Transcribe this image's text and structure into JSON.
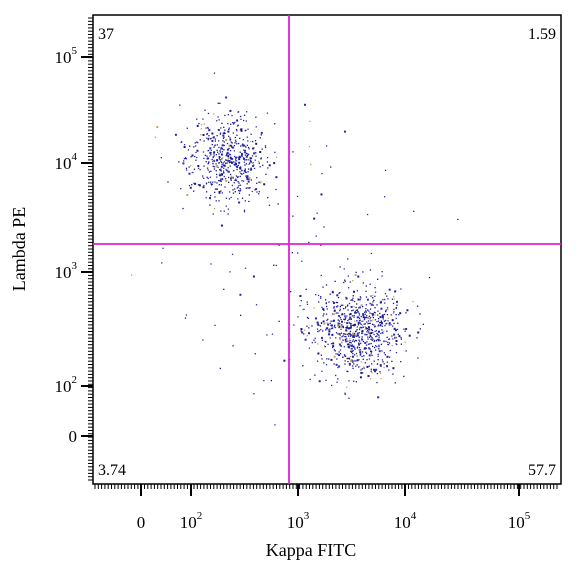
{
  "chart_data": {
    "type": "scatter",
    "xlabel": "Kappa FITC",
    "ylabel": "Lambda PE",
    "x_scale": "biexponential (logicle)",
    "y_scale": "biexponential (logicle)",
    "x_ticks": [
      {
        "value": 0,
        "base": "0",
        "exp": ""
      },
      {
        "value": 100,
        "base": "10",
        "exp": "2"
      },
      {
        "value": 1000,
        "base": "10",
        "exp": "3"
      },
      {
        "value": 10000,
        "base": "10",
        "exp": "4"
      },
      {
        "value": 100000,
        "base": "10",
        "exp": "5"
      }
    ],
    "y_ticks": [
      {
        "value": 0,
        "base": "0",
        "exp": ""
      },
      {
        "value": 100,
        "base": "10",
        "exp": "2"
      },
      {
        "value": 1000,
        "base": "10",
        "exp": "3"
      },
      {
        "value": 10000,
        "base": "10",
        "exp": "4"
      },
      {
        "value": 100000,
        "base": "10",
        "exp": "5"
      }
    ],
    "gate_x": 700,
    "gate_y": 1800,
    "gate_color": "#e020d8",
    "quadrants": {
      "top_left": "37",
      "top_right": "1.59",
      "bottom_left": "3.74",
      "bottom_right": "57.7"
    },
    "populations": [
      {
        "region": "top-left",
        "center_x": 210,
        "center_y": 11000,
        "spread_x": 1.7,
        "spread_y": 1.8,
        "count": 560,
        "color": "#1a1a8c"
      },
      {
        "region": "bottom-right",
        "center_x": 3600,
        "center_y": 320,
        "spread_x": 1.9,
        "spread_y": 1.9,
        "count": 800,
        "color": "#1a1a8c"
      },
      {
        "region": "scattered",
        "center_x": 900,
        "center_y": 1500,
        "spread_x": 5.5,
        "spread_y": 5.0,
        "count": 90,
        "color": "#1a1a8c"
      }
    ],
    "grid": false,
    "legend": "none"
  }
}
